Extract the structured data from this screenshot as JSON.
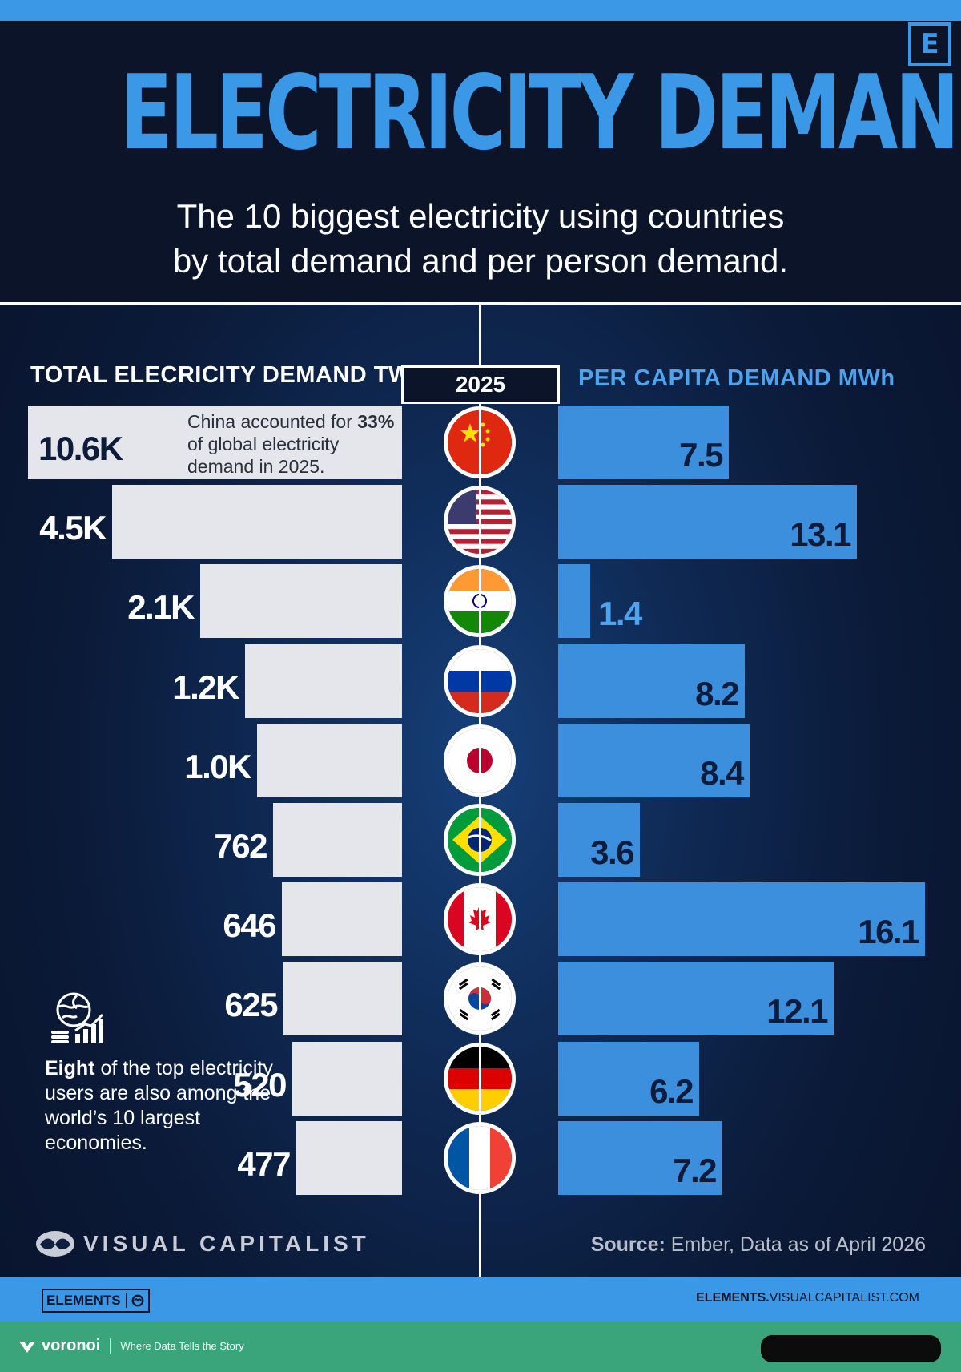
{
  "header": {
    "logo_letter": "E",
    "title_part1": "ELECTRICITY",
    "title_part2": "DEMAND",
    "subtitle_line1": "The 10 biggest electricity using countries",
    "subtitle_line2": "by total demand and per person demand."
  },
  "chart_data": {
    "type": "bar",
    "layout": "butterfly",
    "year_label": "2025",
    "categories": [
      "China",
      "United States",
      "India",
      "Russia",
      "Japan",
      "Brazil",
      "Canada",
      "South Korea",
      "Germany",
      "France"
    ],
    "series": [
      {
        "name": "TOTAL ELECRICITY DEMAND TWh",
        "side": "left",
        "values": [
          10600,
          4500,
          2100,
          1200,
          1000,
          762,
          646,
          625,
          520,
          477
        ],
        "labels": [
          "10.6K",
          "4.5K",
          "2.1K",
          "1.2K",
          "1.0K",
          "762",
          "646",
          "625",
          "520",
          "477"
        ],
        "color": "#e4e6ec"
      },
      {
        "name": "PER CAPITA DEMAND MWh",
        "side": "right",
        "values": [
          7.5,
          13.1,
          1.4,
          8.2,
          8.4,
          3.6,
          16.1,
          12.1,
          6.2,
          7.2
        ],
        "labels": [
          "7.5",
          "13.1",
          "1.4",
          "8.2",
          "8.4",
          "3.6",
          "16.1",
          "12.1",
          "6.2",
          "7.2"
        ],
        "color": "#3b8fdc"
      }
    ],
    "flags": [
      "china-flag-icon",
      "usa-flag-icon",
      "india-flag-icon",
      "russia-flag-icon",
      "japan-flag-icon",
      "brazil-flag-icon",
      "canada-flag-icon",
      "south-korea-flag-icon",
      "germany-flag-icon",
      "france-flag-icon"
    ]
  },
  "annotations": {
    "china_note_pre": "China accounted for ",
    "china_note_bold": "33%",
    "china_note_post": " of global electricity demand in 2025.",
    "econ_icon": "globe-chart-icon",
    "econ_note_bold": "Eight",
    "econ_note_rest": " of the top electricity users are also among the world’s 10 largest economies."
  },
  "branding": {
    "brand_name": "VISUAL CAPITALIST",
    "source_label": "Source:",
    "source_text": " Ember, Data as of April 2026",
    "elements_badge": "ELEMENTS",
    "footer_url_bold": "ELEMENTS.",
    "footer_url_rest": "VISUALCAPITALIST.COM",
    "voronoi_name": "voronoi",
    "voronoi_tagline": "Where Data Tells the Story"
  },
  "colors": {
    "accent_blue": "#3b98e6",
    "background_dark": "#0b1428",
    "footer_green": "#3aa57a"
  }
}
